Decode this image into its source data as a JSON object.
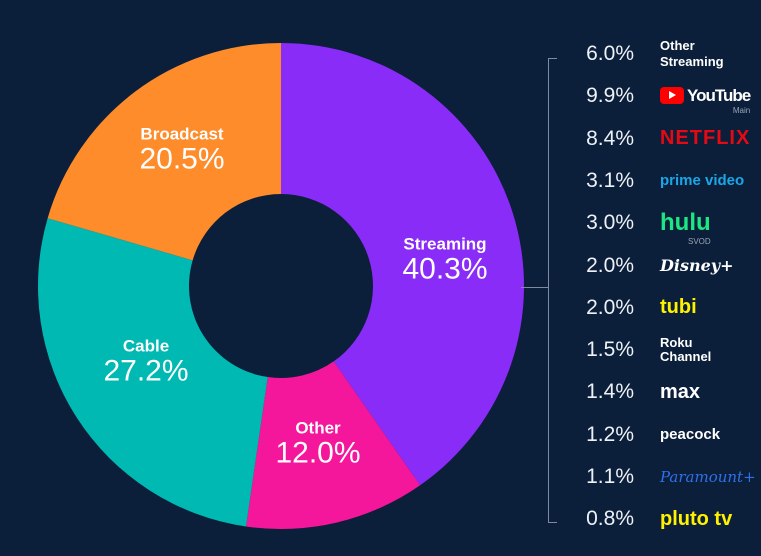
{
  "chart_data": {
    "type": "pie",
    "variant": "donut",
    "segments": [
      {
        "name": "Streaming",
        "value": 40.3,
        "label": "40.3%",
        "color": "#8a2cf7"
      },
      {
        "name": "Other",
        "value": 12.0,
        "label": "12.0%",
        "color": "#f5179b"
      },
      {
        "name": "Cable",
        "value": 27.2,
        "label": "27.2%",
        "color": "#00b9b2"
      },
      {
        "name": "Broadcast",
        "value": 20.5,
        "label": "20.5%",
        "color": "#fe8c2b"
      }
    ],
    "breakdown": {
      "parent": "Streaming",
      "items": [
        {
          "name": "Other Streaming",
          "value": 6.0,
          "label": "6.0%",
          "color": "#ffffff"
        },
        {
          "name": "YouTube",
          "sub": "Main",
          "value": 9.9,
          "label": "9.9%",
          "color": "#ff0000"
        },
        {
          "name": "NETFLIX",
          "value": 8.4,
          "label": "8.4%",
          "color": "#e50914"
        },
        {
          "name": "prime video",
          "value": 3.1,
          "label": "3.1%",
          "color": "#1aa7e8"
        },
        {
          "name": "hulu",
          "sub": "SVOD",
          "value": 3.0,
          "label": "3.0%",
          "color": "#1ce783"
        },
        {
          "name": "Disney+",
          "value": 2.0,
          "label": "2.0%",
          "color": "#ffffff"
        },
        {
          "name": "tubi",
          "value": 2.0,
          "label": "2.0%",
          "color": "#fff200"
        },
        {
          "name": "Roku Channel",
          "value": 1.5,
          "label": "1.5%",
          "color": "#ffffff"
        },
        {
          "name": "max",
          "value": 1.4,
          "label": "1.4%",
          "color": "#ffffff"
        },
        {
          "name": "peacock",
          "value": 1.2,
          "label": "1.2%",
          "color": "#ffffff"
        },
        {
          "name": "Paramount+",
          "value": 1.1,
          "label": "1.1%",
          "color": "#2f6fe8"
        },
        {
          "name": "pluto tv",
          "value": 0.8,
          "label": "0.8%",
          "color": "#fff200"
        }
      ]
    }
  }
}
